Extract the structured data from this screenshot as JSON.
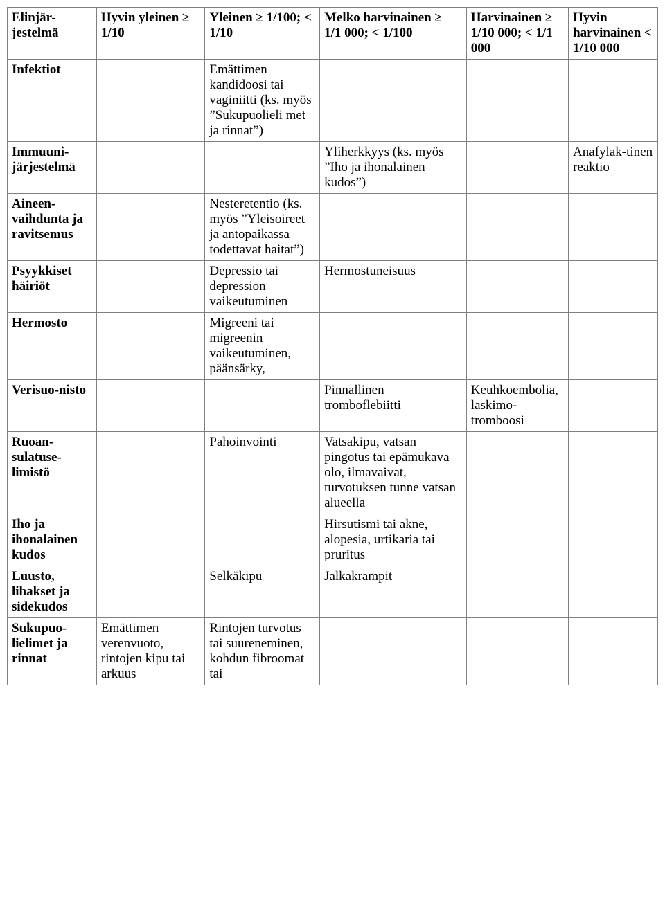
{
  "table": {
    "columns": [
      {
        "label": "Elinjär-jestelmä",
        "width_pct": 14
      },
      {
        "label": "Hyvin yleinen\n≥ 1/10",
        "width_pct": 17
      },
      {
        "label": "Yleinen\n≥ 1/100; < 1/10",
        "width_pct": 18
      },
      {
        "label": "Melko harvinainen\n≥ 1/1 000; < 1/100",
        "width_pct": 23
      },
      {
        "label": "Harvinainen\n≥ 1/10 000;\n< 1/1 000",
        "width_pct": 16
      },
      {
        "label": "Hyvin harvinainen\n< 1/10 000",
        "width_pct": 14
      }
    ],
    "rows": [
      {
        "label": "Infektiot",
        "c1": "",
        "c2": "Emättimen kandidoosi tai vaginiitti (ks. myös ”Sukupuolieli met ja rinnat”)",
        "c3": "",
        "c4": "",
        "c5": ""
      },
      {
        "label": "Immuuni-järjestelmä",
        "c1": "",
        "c2": "",
        "c3": "Yliherkkyys (ks. myös ”Iho ja ihonalainen kudos”)",
        "c4": "",
        "c5": "Anafylak-tinen reaktio"
      },
      {
        "label": "Aineen-vaihdunta ja ravitsemus",
        "c1": "",
        "c2": "Nesteretentio (ks. myös ”Yleisoireet ja antopaikassa todettavat haitat”)",
        "c3": "",
        "c4": "",
        "c5": ""
      },
      {
        "label": "Psyykkiset häiriöt",
        "c1": "",
        "c2": "Depressio tai depression vaikeutuminen",
        "c3": "Hermostuneisuus",
        "c4": "",
        "c5": ""
      },
      {
        "label": "Hermosto",
        "c1": "",
        "c2": "Migreeni tai migreenin vaikeutuminen, päänsärky,",
        "c3": "",
        "c4": "",
        "c5": ""
      },
      {
        "label": "Verisuo-nisto",
        "c1": "",
        "c2": "",
        "c3": "Pinnallinen tromboflebiitti",
        "c4": "Keuhkoembolia, laskimo-tromboosi",
        "c5": ""
      },
      {
        "label": "Ruoan-sulatuse-limistö",
        "c1": "",
        "c2": "Pahoinvointi",
        "c3": "Vatsakipu, vatsan pingotus tai epämukava olo, ilmavaivat, turvotuksen tunne vatsan alueella",
        "c4": "",
        "c5": ""
      },
      {
        "label": "Iho ja ihonalainen kudos",
        "c1": "",
        "c2": "",
        "c3": "Hirsutismi tai akne, alopesia, urtikaria tai pruritus",
        "c4": "",
        "c5": ""
      },
      {
        "label": "Luusto, lihakset ja sidekudos",
        "c1": "",
        "c2": "Selkäkipu",
        "c3": "Jalkakrampit",
        "c4": "",
        "c5": ""
      },
      {
        "label": "Sukupuo-lielimet ja rinnat",
        "c1": "Emättimen verenvuoto, rintojen kipu tai arkuus",
        "c2": "Rintojen turvotus tai suureneminen, kohdun fibroomat tai",
        "c3": "",
        "c4": "",
        "c5": ""
      }
    ],
    "styling": {
      "font_family": "Times New Roman",
      "font_size_pt": 14,
      "border_color": "#808080",
      "background_color": "#ffffff",
      "text_color": "#000000",
      "header_font_weight": "bold",
      "row_label_font_weight": "bold"
    }
  }
}
